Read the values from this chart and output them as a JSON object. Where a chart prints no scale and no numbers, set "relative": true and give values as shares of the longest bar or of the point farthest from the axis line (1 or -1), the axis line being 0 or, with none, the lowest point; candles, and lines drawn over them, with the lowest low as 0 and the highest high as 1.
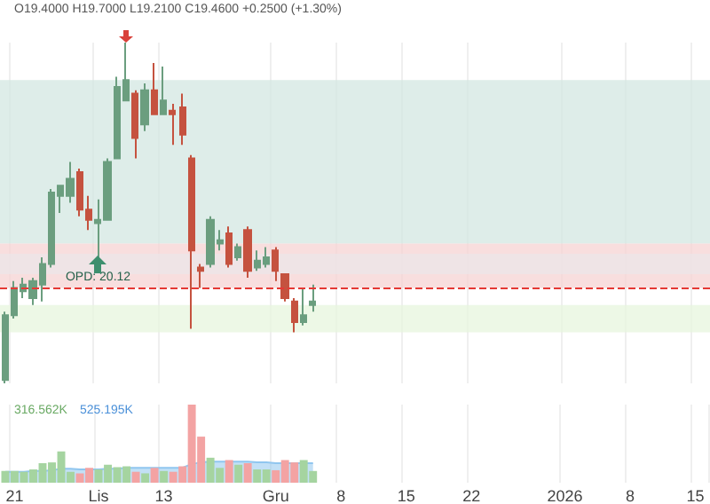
{
  "chart_data": [
    {
      "type": "candlestick",
      "relative": true,
      "grid": "x",
      "tick_labels": false,
      "annotations": [
        "O19.4000 H19.7000 L19.2100 C19.4600 +0.2500 (+1.30%)",
        {
          "text": "OPD: 20.12",
          "x": "Lis",
          "y": 0.31
        }
      ],
      "categories": [
        null,
        "21",
        null,
        null,
        null,
        null,
        null,
        null,
        null,
        null,
        "Lis",
        null,
        null,
        null,
        null,
        null,
        null,
        "13",
        null,
        null,
        null,
        null,
        null,
        null,
        null,
        null,
        null,
        null,
        null,
        "Gru",
        null,
        null,
        null,
        null,
        null,
        null,
        "8",
        null,
        null,
        null,
        null,
        null,
        null,
        "15",
        null,
        null,
        null,
        null,
        null,
        null,
        "22",
        null,
        null,
        null,
        null,
        null,
        null,
        null,
        null,
        null,
        "2026",
        null,
        null,
        null,
        null,
        null,
        null,
        "8",
        null,
        null,
        null,
        null,
        null,
        null,
        "15",
        null
      ],
      "ohlc": [
        [
          0.01,
          0.21,
          0,
          0.2
        ],
        [
          0.2,
          0.3,
          0.19,
          0.28
        ],
        [
          0.27,
          0.31,
          0.25,
          0.29
        ],
        [
          0.25,
          0.31,
          0.23,
          0.3
        ],
        [
          0.29,
          0.37,
          0.24,
          0.35
        ],
        [
          0.35,
          0.57,
          0.34,
          0.56
        ],
        [
          0.55,
          0.58,
          0.5,
          0.58
        ],
        [
          0.55,
          0.65,
          0.53,
          0.6
        ],
        [
          0.62,
          0.63,
          0.49,
          0.51
        ],
        [
          0.51,
          0.55,
          0.45,
          0.48
        ],
        [
          0.47,
          0.54,
          0.37,
          0.48
        ],
        [
          0.48,
          0.66,
          0.48,
          0.65
        ],
        [
          0.66,
          0.9,
          0.66,
          0.87
        ],
        [
          0.83,
          1,
          0.83,
          0.89
        ],
        [
          0.85,
          0.86,
          0.66,
          0.72
        ],
        [
          0.76,
          0.88,
          0.74,
          0.86
        ],
        [
          0.86,
          0.94,
          0.79,
          0.79
        ],
        [
          0.79,
          0.93,
          0.79,
          0.83
        ],
        [
          0.8,
          0.82,
          0.7,
          0.79
        ],
        [
          0.81,
          0.85,
          0.7,
          0.73
        ],
        [
          0.66,
          0.67,
          0.16,
          0.39
        ],
        [
          0.34,
          0.35,
          0.28,
          0.33
        ],
        [
          0.35,
          0.49,
          0.34,
          0.48
        ],
        [
          0.41,
          0.45,
          0.39,
          0.42
        ],
        [
          0.44,
          0.46,
          0.34,
          0.35
        ],
        [
          0.37,
          0.41,
          0.36,
          0.4
        ],
        [
          0.45,
          0.46,
          0.31,
          0.33
        ],
        [
          0.34,
          0.39,
          0.33,
          0.36
        ],
        [
          0.35,
          0.4,
          0.34,
          0.37
        ],
        [
          0.39,
          0.4,
          0.3,
          0.33
        ],
        [
          0.32,
          0.32,
          0.24,
          0.25
        ],
        [
          0.24,
          0.25,
          0.15,
          0.18
        ],
        [
          0.18,
          0.28,
          0.17,
          0.2
        ],
        [
          0.23,
          0.29,
          0.21,
          0.24
        ],
        null,
        null,
        null,
        null,
        null,
        null,
        null,
        null,
        null,
        null,
        null,
        null,
        null,
        null,
        null,
        null,
        null,
        null,
        null,
        null,
        null,
        null,
        null,
        null,
        null,
        null,
        null,
        null,
        null,
        null,
        null,
        null,
        null,
        null,
        null,
        null,
        null,
        null,
        null,
        null,
        null,
        null
      ],
      "colors": [
        "#6b9e7f",
        "#6b9e7f",
        "#6b9e7f",
        "#6b9e7f",
        "#6b9e7f",
        "#6b9e7f",
        "#6b9e7f",
        "#6b9e7f",
        "#c5523f",
        "#c5523f",
        "#6b9e7f",
        "#6b9e7f",
        "#6b9e7f",
        "#6b9e7f",
        "#c5523f",
        "#6b9e7f",
        "#c5523f",
        "#6b9e7f",
        "#c5523f",
        "#c5523f",
        "#c5523f",
        "#c5523f",
        "#6b9e7f",
        "#6b9e7f",
        "#c5523f",
        "#6b9e7f",
        "#c5523f",
        "#6b9e7f",
        "#6b9e7f",
        "#c5523f",
        "#c5523f",
        "#c5523f",
        "#6b9e7f",
        "#6b9e7f",
        null,
        null,
        null,
        null,
        null,
        null,
        null,
        null,
        null,
        null,
        null,
        null,
        null,
        null,
        null,
        null,
        null,
        null,
        null,
        null,
        null,
        null,
        null,
        null,
        null,
        null,
        null,
        null,
        null,
        null,
        null,
        null,
        null,
        null,
        null,
        null,
        null,
        null,
        null,
        null,
        null,
        null
      ],
      "bands": [
        {
          "axis": "y",
          "from": 0.41,
          "to": 0.89,
          "color": "#d3e7e1"
        },
        {
          "axis": "y",
          "from": 0.28,
          "to": 0.41,
          "color": "#f6d3d3"
        },
        {
          "axis": "y",
          "from": 0.32,
          "to": 0.38,
          "color": "#ece5e8"
        },
        {
          "axis": "y",
          "from": 0.15,
          "to": 0.23,
          "color": "#e7f6de"
        }
      ],
      "ref_lines": [
        {
          "axis": "y",
          "value": 0.28,
          "color": "#e53935",
          "line_style": "dashed"
        }
      ]
    },
    {
      "type": "bar",
      "relative": true,
      "grid": "x",
      "tick_labels": "x",
      "annotations": [
        "316.562K",
        "525.195K"
      ],
      "categories": [
        null,
        "21",
        null,
        null,
        null,
        null,
        null,
        null,
        null,
        null,
        "Lis",
        null,
        null,
        null,
        null,
        null,
        null,
        "13",
        null,
        null,
        null,
        null,
        null,
        null,
        null,
        null,
        null,
        null,
        null,
        "Gru",
        null,
        null,
        null,
        null,
        null,
        null,
        "8",
        null,
        null,
        null,
        null,
        null,
        null,
        "15",
        null,
        null,
        null,
        null,
        null,
        null,
        "22",
        null,
        null,
        null,
        null,
        null,
        null,
        null,
        null,
        null,
        "2026",
        null,
        null,
        null,
        null,
        null,
        null,
        "8",
        null,
        null,
        null,
        null,
        null,
        null,
        "15",
        null
      ],
      "series": [
        {
          "type": "bar",
          "values": [
            0.15,
            0.15,
            0.14,
            0.17,
            0.25,
            0.26,
            0.4,
            0.14,
            0.12,
            0.19,
            0.17,
            0.23,
            0.2,
            0.21,
            0.14,
            0.12,
            0.19,
            0.15,
            0.14,
            0.21,
            1,
            0.59,
            0.32,
            0.19,
            0.29,
            0.23,
            0.25,
            0.17,
            0.17,
            0.16,
            0.29,
            0.26,
            0.29,
            0.15,
            null,
            null,
            null,
            null,
            null,
            null,
            null,
            null,
            null,
            null,
            null,
            null,
            null,
            null,
            null,
            null,
            null,
            null,
            null,
            null,
            null,
            null,
            null,
            null,
            null,
            null,
            null,
            null,
            null,
            null,
            null,
            null,
            null,
            null,
            null,
            null,
            null,
            null,
            null,
            null,
            null,
            null
          ],
          "colors": [
            "#a5d4a0",
            "#a5d4a0",
            "#a5d4a0",
            "#a5d4a0",
            "#a5d4a0",
            "#a5d4a0",
            "#a5d4a0",
            "#a5d4a0",
            "#f3a3a3",
            "#f3a3a3",
            "#a5d4a0",
            "#a5d4a0",
            "#a5d4a0",
            "#a5d4a0",
            "#f3a3a3",
            "#a5d4a0",
            "#f3a3a3",
            "#a5d4a0",
            "#f3a3a3",
            "#f3a3a3",
            "#f3a3a3",
            "#f3a3a3",
            "#a5d4a0",
            "#a5d4a0",
            "#f3a3a3",
            "#a5d4a0",
            "#f3a3a3",
            "#a5d4a0",
            "#a5d4a0",
            "#f3a3a3",
            "#f3a3a3",
            "#f3a3a3",
            "#a5d4a0",
            "#a5d4a0",
            null,
            null,
            null,
            null,
            null,
            null,
            null,
            null,
            null,
            null,
            null,
            null,
            null,
            null,
            null,
            null,
            null,
            null,
            null,
            null,
            null,
            null,
            null,
            null,
            null,
            null,
            null,
            null,
            null,
            null,
            null,
            null,
            null,
            null,
            null,
            null,
            null,
            null,
            null,
            null,
            null,
            null
          ]
        },
        {
          "type": "area",
          "color": "#90c6ef",
          "values": [
            0.14,
            0.14,
            0.14,
            0.15,
            0.15,
            0.16,
            0.18,
            0.18,
            0.17,
            0.17,
            0.17,
            0.18,
            0.18,
            0.19,
            0.19,
            0.19,
            0.19,
            0.19,
            0.19,
            0.19,
            0.24,
            0.26,
            0.27,
            0.27,
            0.27,
            0.27,
            0.27,
            0.26,
            0.26,
            0.25,
            0.25,
            0.25,
            0.25,
            0.25,
            null,
            null,
            null,
            null,
            null,
            null,
            null,
            null,
            null,
            null,
            null,
            null,
            null,
            null,
            null,
            null,
            null,
            null,
            null,
            null,
            null,
            null,
            null,
            null,
            null,
            null,
            null,
            null,
            null,
            null,
            null,
            null,
            null,
            null,
            null,
            null,
            null,
            null,
            null,
            null,
            null,
            null
          ]
        }
      ]
    }
  ]
}
